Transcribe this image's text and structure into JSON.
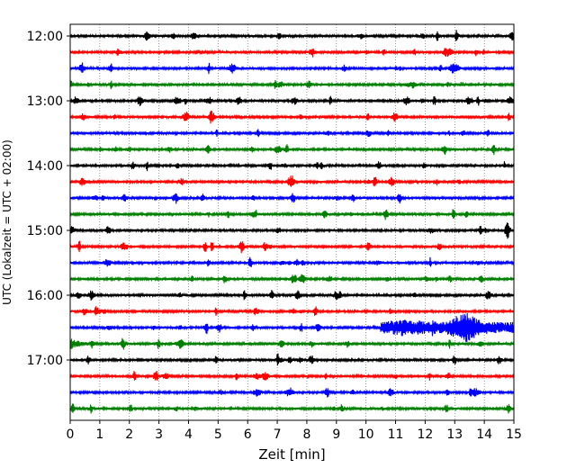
{
  "chart_data": {
    "type": "line",
    "subtype": "helicorder",
    "xlabel": "Zeit  [min]",
    "ylabel": "UTC (Lokalzeit = UTC + 02:00)",
    "xlim": [
      0,
      15
    ],
    "x_ticks": [
      "0",
      "1",
      "2",
      "3",
      "4",
      "5",
      "6",
      "7",
      "8",
      "9",
      "10",
      "11",
      "12",
      "13",
      "14",
      "15"
    ],
    "y_tick_labels": [
      "12:00",
      "13:00",
      "14:00",
      "15:00",
      "16:00",
      "17:00"
    ],
    "trace_minutes_per_line": 15,
    "traces_per_hour": 4,
    "grid": "vertical dotted at each minute",
    "trace_colors": [
      "#000000",
      "#ff0000",
      "#0000ff",
      "#008000"
    ],
    "traces": [
      {
        "start": "12:00",
        "color": "#000000",
        "activity": "low"
      },
      {
        "start": "12:15",
        "color": "#ff0000",
        "activity": "low"
      },
      {
        "start": "12:30",
        "color": "#0000ff",
        "activity": "low"
      },
      {
        "start": "12:45",
        "color": "#008000",
        "activity": "low"
      },
      {
        "start": "13:00",
        "color": "#000000",
        "activity": "moderate"
      },
      {
        "start": "13:15",
        "color": "#ff0000",
        "activity": "low"
      },
      {
        "start": "13:30",
        "color": "#0000ff",
        "activity": "low"
      },
      {
        "start": "13:45",
        "color": "#008000",
        "activity": "low"
      },
      {
        "start": "14:00",
        "color": "#000000",
        "activity": "low"
      },
      {
        "start": "14:15",
        "color": "#ff0000",
        "activity": "low"
      },
      {
        "start": "14:30",
        "color": "#0000ff",
        "activity": "low"
      },
      {
        "start": "14:45",
        "color": "#008000",
        "activity": "low"
      },
      {
        "start": "15:00",
        "color": "#000000",
        "activity": "low"
      },
      {
        "start": "15:15",
        "color": "#ff0000",
        "activity": "low"
      },
      {
        "start": "15:30",
        "color": "#0000ff",
        "activity": "low"
      },
      {
        "start": "15:45",
        "color": "#008000",
        "activity": "low"
      },
      {
        "start": "16:00",
        "color": "#000000",
        "activity": "low"
      },
      {
        "start": "16:15",
        "color": "#ff0000",
        "activity": "low"
      },
      {
        "start": "16:30",
        "color": "#0000ff",
        "activity": "event",
        "event_minutes": [
          10.5,
          15
        ],
        "peak_minute": 13.3
      },
      {
        "start": "16:45",
        "color": "#008000",
        "activity": "event-tail",
        "event_minutes": [
          0,
          0.5
        ]
      },
      {
        "start": "17:00",
        "color": "#000000",
        "activity": "low"
      },
      {
        "start": "17:15",
        "color": "#ff0000",
        "activity": "low"
      },
      {
        "start": "17:30",
        "color": "#0000ff",
        "activity": "low"
      },
      {
        "start": "17:45",
        "color": "#008000",
        "activity": "low"
      }
    ]
  }
}
